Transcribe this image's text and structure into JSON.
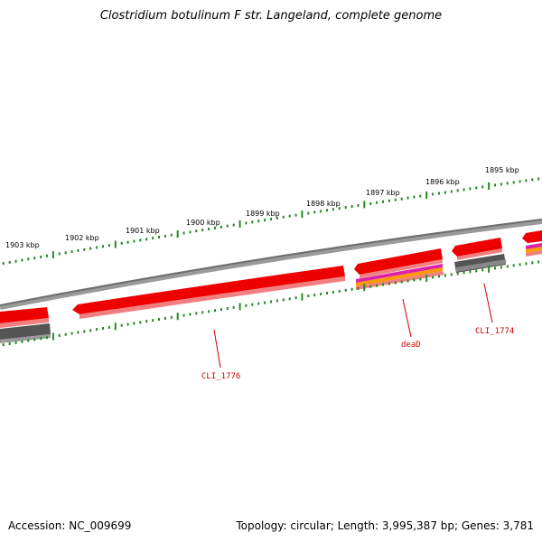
{
  "title": "Clostridium botulinum F str. Langeland, complete genome",
  "footer": {
    "accession": "Accession: NC_009699",
    "summary": "Topology: circular; Length: 3,995,387 bp; Genes: 3,781"
  },
  "colors": {
    "gene_red": "#ee0000",
    "gene_pink": "#f08080",
    "backbone": "#7a7a7a",
    "gray_feature": "#555555",
    "tick_green": "#228b22",
    "label_red": "#cc0000",
    "magenta": "#dd22aa",
    "orange": "#ff9900"
  },
  "tick_labels": [
    {
      "text": "1903 kbp"
    },
    {
      "text": "1902 kbp"
    },
    {
      "text": "1901 kbp"
    },
    {
      "text": "1900 kbp"
    },
    {
      "text": "1899 kbp"
    },
    {
      "text": "1898 kbp"
    },
    {
      "text": "1897 kbp"
    },
    {
      "text": "1896 kbp"
    },
    {
      "text": "1895 kbp"
    }
  ],
  "gene_labels": [
    {
      "text": "CLI_1776"
    },
    {
      "text": "deaD"
    },
    {
      "text": "CLI_1774"
    }
  ]
}
